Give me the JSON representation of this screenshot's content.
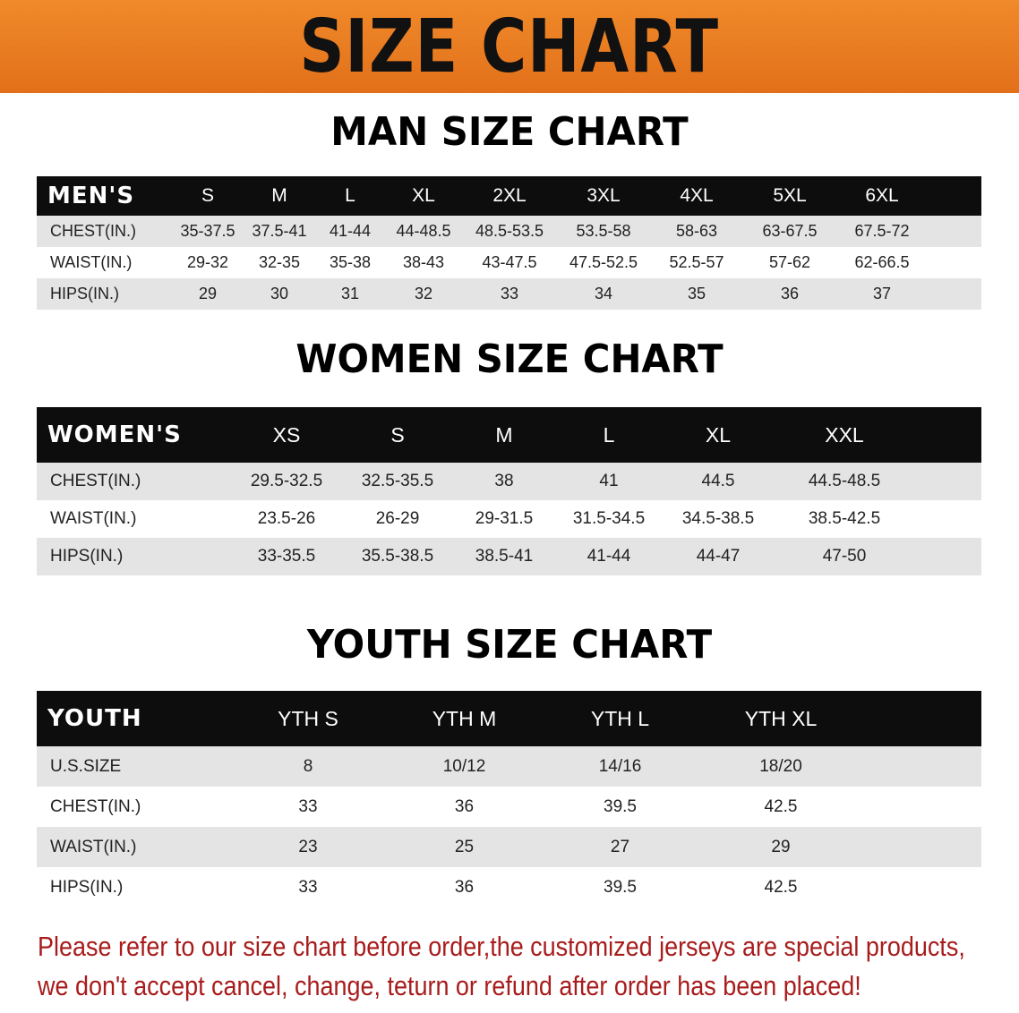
{
  "banner": {
    "title": "SIZE CHART"
  },
  "men": {
    "title": "MAN SIZE CHART",
    "header": [
      "MEN'S",
      "S",
      "M",
      "L",
      "XL",
      "2XL",
      "3XL",
      "4XL",
      "5XL",
      "6XL"
    ],
    "rows": [
      [
        "CHEST(IN.)",
        "35-37.5",
        "37.5-41",
        "41-44",
        "44-48.5",
        "48.5-53.5",
        "53.5-58",
        "58-63",
        "63-67.5",
        "67.5-72"
      ],
      [
        "WAIST(IN.)",
        "29-32",
        "32-35",
        "35-38",
        "38-43",
        "43-47.5",
        "47.5-52.5",
        "52.5-57",
        "57-62",
        "62-66.5"
      ],
      [
        "HIPS(IN.)",
        "29",
        "30",
        "31",
        "32",
        "33",
        "34",
        "35",
        "36",
        "37"
      ]
    ]
  },
  "women": {
    "title": "WOMEN SIZE CHART",
    "header": [
      "WOMEN'S",
      "XS",
      "S",
      "M",
      "L",
      "XL",
      "XXL"
    ],
    "rows": [
      [
        "CHEST(IN.)",
        "29.5-32.5",
        "32.5-35.5",
        "38",
        "41",
        "44.5",
        "44.5-48.5"
      ],
      [
        "WAIST(IN.)",
        "23.5-26",
        "26-29",
        "29-31.5",
        "31.5-34.5",
        "34.5-38.5",
        "38.5-42.5"
      ],
      [
        "HIPS(IN.)",
        "33-35.5",
        "35.5-38.5",
        "38.5-41",
        "41-44",
        "44-47",
        "47-50"
      ]
    ]
  },
  "youth": {
    "title": "YOUTH SIZE CHART",
    "header": [
      "YOUTH",
      "YTH S",
      "YTH M",
      "YTH L",
      "YTH XL"
    ],
    "rows": [
      [
        "U.S.SIZE",
        "8",
        "10/12",
        "14/16",
        "18/20"
      ],
      [
        "CHEST(IN.)",
        "33",
        "36",
        "39.5",
        "42.5"
      ],
      [
        "WAIST(IN.)",
        "23",
        "25",
        "27",
        "29"
      ],
      [
        "HIPS(IN.)",
        "33",
        "36",
        "39.5",
        "42.5"
      ]
    ]
  },
  "note": {
    "line1": "Please refer to our size chart before order,the customized jerseys are special products,",
    "line2": "we don't accept cancel, change, teturn or refund after order has been placed!",
    "color": "#a81c1c"
  },
  "colors": {
    "banner": "#e8781e",
    "header_row": "#0d0d0d",
    "stripe": "#e4e4e4"
  }
}
